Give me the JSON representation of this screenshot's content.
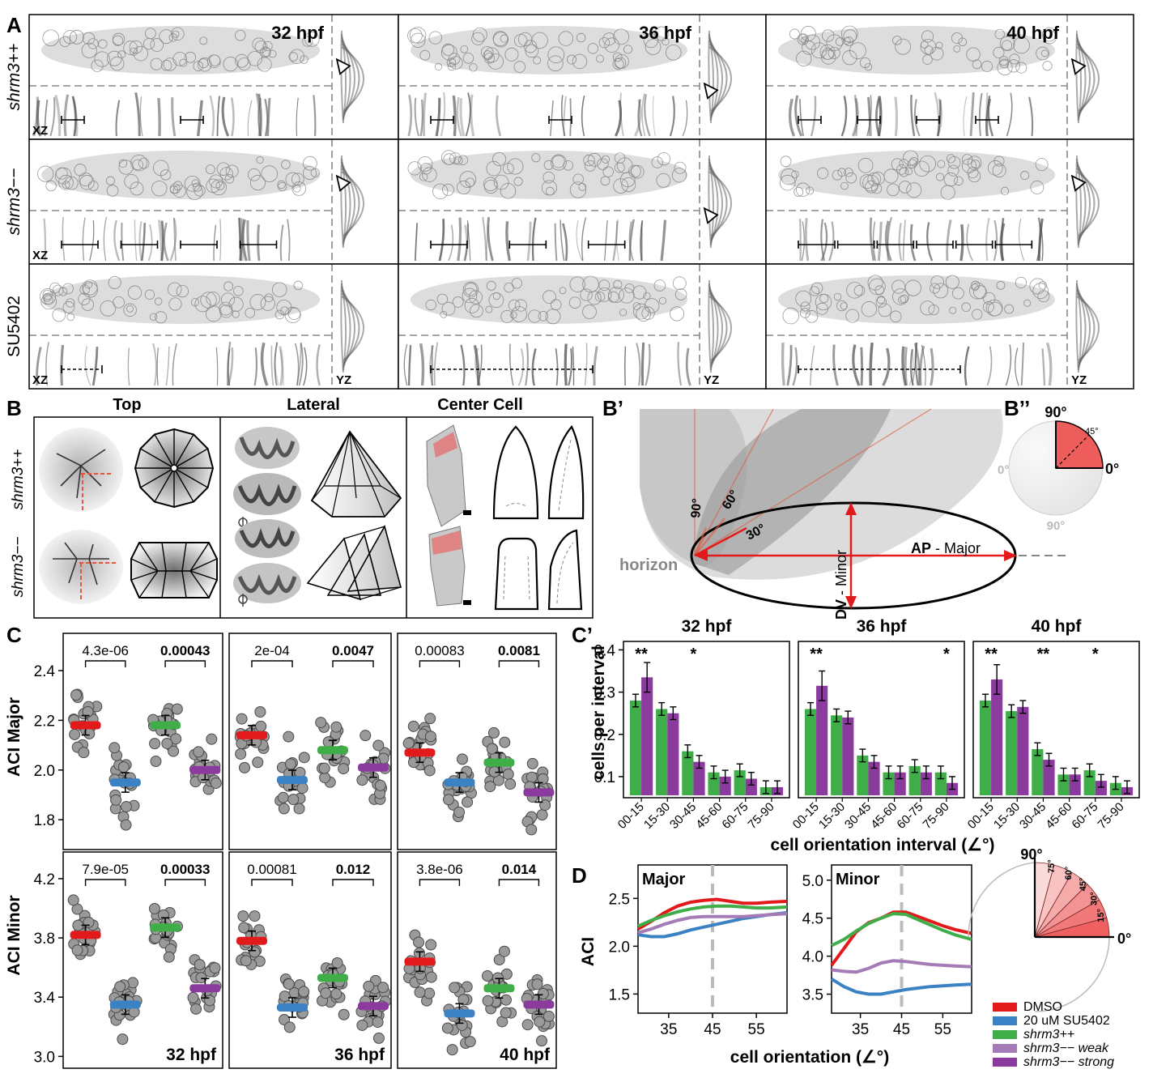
{
  "panel_letters": {
    "A": "A",
    "B": "B",
    "Bp": "B’",
    "Bpp": "B’’",
    "C": "C",
    "Cp": "C’",
    "D": "D"
  },
  "panel_a": {
    "timepoints": [
      "32 hpf",
      "36 hpf",
      "40 hpf"
    ],
    "rows": [
      {
        "label": "shrm3++",
        "style": "italic"
      },
      {
        "label": "shrm3−−",
        "style": "italic"
      },
      {
        "label": "SU5402",
        "style": "normal"
      }
    ],
    "xz_label": "XZ",
    "yz_label": "YZ"
  },
  "panel_b": {
    "columns": [
      "Top",
      "Lateral",
      "Center Cell"
    ],
    "rows": [
      "shrm3++",
      "shrm3−−"
    ]
  },
  "panel_bp": {
    "angles": [
      "90°",
      "60°",
      "30°"
    ],
    "horizon": "horizon",
    "major_bold": "AP",
    "major_rest": " - Major",
    "minor_bold": "DV",
    "minor_rest": " - Minor"
  },
  "panel_bpp": {
    "top": "90°",
    "right": "0°",
    "left": "0°",
    "bottom": "90°",
    "mid": "45°"
  },
  "panel_c": {
    "ylabel_major": "ACI Major",
    "ylabel_minor": "ACI Minor",
    "major_ticks": [
      "2.4",
      "2.2",
      "2.0",
      "1.8"
    ],
    "minor_ticks": [
      "4.2",
      "3.8",
      "3.4",
      "3.0"
    ],
    "timepoints": [
      "32 hpf",
      "36 hpf",
      "40 hpf"
    ],
    "pvalues_major": [
      [
        "4.3e-06",
        "0.00043"
      ],
      [
        "2e-04",
        "0.0047"
      ],
      [
        "0.00083",
        "0.0081"
      ]
    ],
    "pvalues_minor": [
      [
        "7.9e-05",
        "0.00033"
      ],
      [
        "0.00081",
        "0.012"
      ],
      [
        "3.8e-06",
        "0.014"
      ]
    ],
    "group_colors": [
      "#e31a1c",
      "#3b82c4",
      "#3fae49",
      "#8b3a9e"
    ]
  },
  "chart_data": [
    {
      "type": "bar",
      "title": "32 hpf",
      "xlabel": "cell orientation interval (∠°)",
      "ylabel": "cells per interval",
      "ylim": [
        0.05,
        0.42
      ],
      "categories": [
        "00-15",
        "15-30",
        "30-45",
        "45-60",
        "60-75",
        "75-90"
      ],
      "series": [
        {
          "values": [
            0.28,
            0.26,
            0.16,
            0.11,
            0.115,
            0.075
          ]
        },
        {
          "values": [
            0.335,
            0.25,
            0.135,
            0.1,
            0.095,
            0.075
          ]
        }
      ],
      "colors": [
        "#3fae49",
        "#8b3a9e"
      ],
      "yticks": [
        "0.4",
        "0.3",
        "0.2",
        "0.1"
      ],
      "significance": [
        "**",
        "",
        "*",
        "",
        "",
        ""
      ]
    },
    {
      "type": "bar",
      "title": "36 hpf",
      "ylim": [
        0.05,
        0.42
      ],
      "categories": [
        "00-15",
        "15-30",
        "30-45",
        "45-60",
        "60-75",
        "75-90"
      ],
      "series": [
        {
          "values": [
            0.26,
            0.245,
            0.15,
            0.11,
            0.125,
            0.11
          ]
        },
        {
          "values": [
            0.315,
            0.24,
            0.135,
            0.11,
            0.11,
            0.085
          ]
        }
      ],
      "colors": [
        "#3fae49",
        "#8b3a9e"
      ],
      "significance": [
        "**",
        "",
        "",
        "",
        "",
        "*"
      ]
    },
    {
      "type": "bar",
      "title": "40 hpf",
      "ylim": [
        0.05,
        0.42
      ],
      "categories": [
        "00-15",
        "15-30",
        "30-45",
        "45-60",
        "60-75",
        "75-90"
      ],
      "series": [
        {
          "values": [
            0.28,
            0.255,
            0.165,
            0.105,
            0.115,
            0.085
          ]
        },
        {
          "values": [
            0.33,
            0.265,
            0.14,
            0.105,
            0.09,
            0.075
          ]
        }
      ],
      "colors": [
        "#3fae49",
        "#8b3a9e"
      ],
      "significance": [
        "**",
        "",
        "**",
        "",
        "*",
        ""
      ]
    },
    {
      "type": "line",
      "title": "Major",
      "ylabel": "ACI",
      "xlim": [
        28,
        62
      ],
      "ylim": [
        1.3,
        2.85
      ],
      "x": [
        28,
        31,
        34,
        37,
        40,
        43,
        46,
        49,
        52,
        55,
        58,
        62
      ],
      "xticks": [
        "35",
        "45",
        "55"
      ],
      "yticks": [
        "2.5",
        "2.0",
        "1.5"
      ],
      "series": [
        {
          "values": [
            2.18,
            2.26,
            2.35,
            2.42,
            2.46,
            2.48,
            2.49,
            2.47,
            2.45,
            2.45,
            2.46,
            2.47
          ]
        },
        {
          "values": [
            2.12,
            2.1,
            2.1,
            2.13,
            2.17,
            2.2,
            2.23,
            2.26,
            2.29,
            2.31,
            2.33,
            2.35
          ]
        },
        {
          "values": [
            2.21,
            2.27,
            2.32,
            2.36,
            2.39,
            2.41,
            2.42,
            2.42,
            2.41,
            2.4,
            2.4,
            2.41
          ]
        },
        {
          "values": [
            2.14,
            2.18,
            2.23,
            2.27,
            2.3,
            2.31,
            2.31,
            2.31,
            2.31,
            2.32,
            2.33,
            2.34
          ]
        }
      ]
    },
    {
      "type": "line",
      "title": "Minor",
      "xlim": [
        28,
        62
      ],
      "ylim": [
        3.25,
        5.2
      ],
      "x": [
        28,
        31,
        34,
        37,
        40,
        43,
        46,
        49,
        52,
        55,
        58,
        62
      ],
      "xticks": [
        "35",
        "45",
        "55"
      ],
      "yticks": [
        "5.0",
        "4.5",
        "4.0",
        "3.5"
      ],
      "series": [
        {
          "values": [
            3.88,
            4.1,
            4.32,
            4.44,
            4.5,
            4.58,
            4.58,
            4.52,
            4.46,
            4.4,
            4.35,
            4.3
          ]
        },
        {
          "values": [
            3.7,
            3.6,
            3.53,
            3.5,
            3.5,
            3.53,
            3.56,
            3.58,
            3.6,
            3.61,
            3.62,
            3.63
          ]
        },
        {
          "values": [
            4.14,
            4.22,
            4.33,
            4.43,
            4.5,
            4.56,
            4.55,
            4.48,
            4.41,
            4.34,
            4.28,
            4.22
          ]
        },
        {
          "values": [
            3.82,
            3.8,
            3.79,
            3.84,
            3.91,
            3.94,
            3.93,
            3.91,
            3.89,
            3.88,
            3.87,
            3.86
          ]
        }
      ]
    }
  ],
  "panel_d": {
    "xlabel": "cell orientation (∠°)",
    "legend": [
      {
        "label": "DMSO",
        "color": "#e31a1c",
        "italic": false
      },
      {
        "label": "20 uM SU5402",
        "color": "#3b82c4",
        "italic": false
      },
      {
        "label": "shrm3++",
        "color": "#3fae49",
        "italic": true
      },
      {
        "label": "shrm3−− weak",
        "color": "#a57bb5",
        "italic": true
      },
      {
        "label": "shrm3−− strong",
        "color": "#8b3a9e",
        "italic": true
      }
    ],
    "quarter_labels": {
      "top": "90°",
      "right": "0°",
      "rays": [
        "75°",
        "60°",
        "45°",
        "30°",
        "15°"
      ]
    }
  }
}
